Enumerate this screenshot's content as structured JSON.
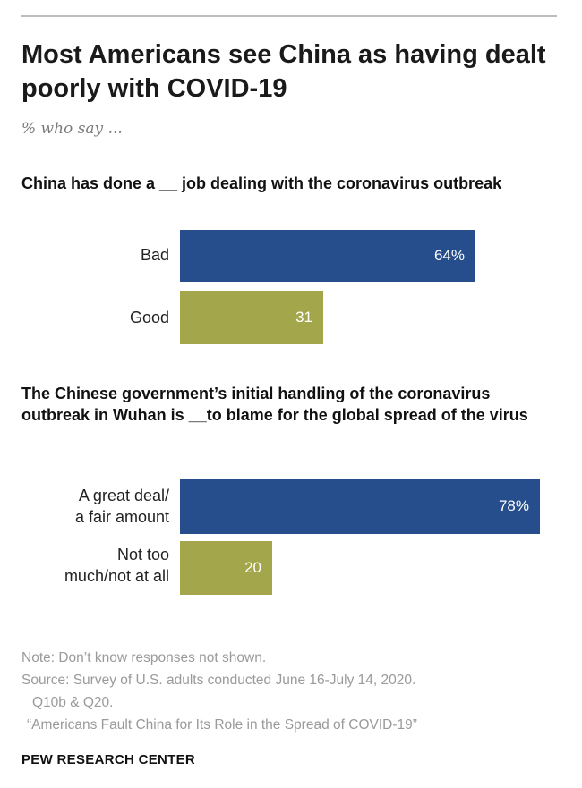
{
  "title": "Most Americans see China as having dealt poorly with COVID-19",
  "subtitle": "% who say ...",
  "colors": {
    "dark_blue": "#264d8c",
    "olive": "#a3a64a"
  },
  "chart_data": [
    {
      "type": "bar",
      "orientation": "horizontal",
      "title": "China has done a __ job dealing with the coronavirus outbreak",
      "categories": [
        "Bad",
        "Good"
      ],
      "values": [
        64,
        31
      ],
      "value_labels": [
        "64%",
        "31"
      ],
      "colors": [
        "#264d8c",
        "#a3a64a"
      ],
      "xlim": [
        0,
        100
      ]
    },
    {
      "type": "bar",
      "orientation": "horizontal",
      "title": "The Chinese government’s initial handling of the coronavirus outbreak in Wuhan is __to blame for the global spread of the virus",
      "categories": [
        [
          "A great deal/",
          "a fair amount"
        ],
        [
          "Not too",
          "much/not at all"
        ]
      ],
      "values": [
        78,
        20
      ],
      "value_labels": [
        "78%",
        "20"
      ],
      "colors": [
        "#264d8c",
        "#a3a64a"
      ],
      "xlim": [
        0,
        100
      ]
    }
  ],
  "footer": {
    "note": "Note: Don’t know responses not shown.",
    "source_line1": "Source: Survey of U.S. adults conducted June 16-July 14, 2020.",
    "source_line2": "Q10b & Q20.",
    "report": "“Americans Fault China for Its Role in the Spread of COVID-19”",
    "org": "PEW RESEARCH CENTER"
  }
}
